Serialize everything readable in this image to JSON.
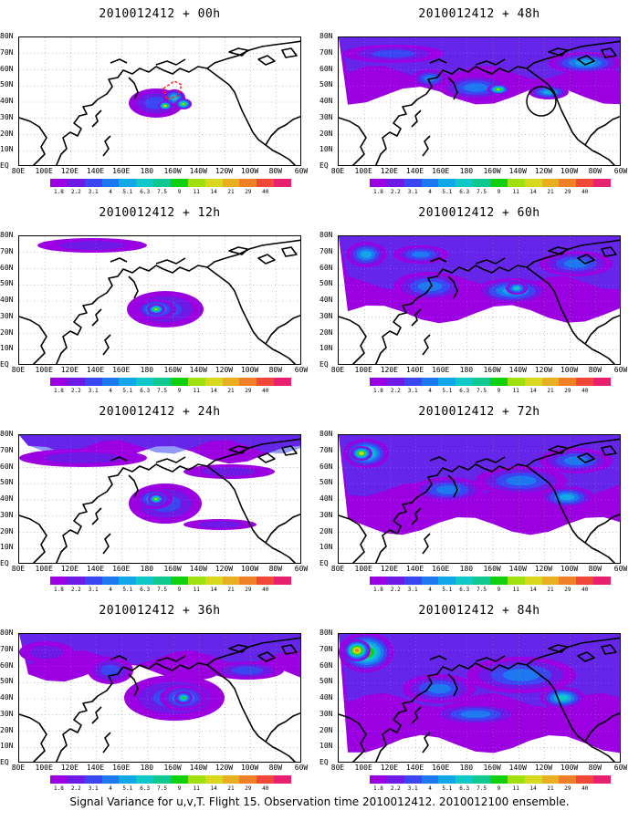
{
  "figure": {
    "caption": "Signal Variance for u,v,T. Flight 15. Observation time 2010012412. 2010012100 ensemble.",
    "panels": [
      {
        "title": "2010012412 + 00h",
        "blobs": [
          [
            150,
            72,
            30,
            16,
            3
          ],
          [
            170,
            66,
            12,
            9,
            6
          ],
          [
            180,
            73,
            9,
            6,
            8
          ],
          [
            160,
            75,
            8,
            5,
            9
          ]
        ],
        "band": 0,
        "target": "red-box"
      },
      {
        "title": "2010012412 + 48h",
        "blobs": [
          [
            60,
            18,
            55,
            10,
            3
          ],
          [
            150,
            55,
            40,
            14,
            4
          ],
          [
            175,
            57,
            12,
            6,
            8
          ],
          [
            230,
            60,
            22,
            8,
            5
          ],
          [
            270,
            28,
            40,
            12,
            5
          ],
          [
            100,
            45,
            20,
            10,
            4
          ]
        ],
        "band": 0.45,
        "target": "black-circle"
      },
      {
        "title": "2010012412 + 12h",
        "blobs": [
          [
            160,
            80,
            42,
            20,
            3
          ],
          [
            150,
            80,
            22,
            11,
            6
          ],
          [
            150,
            80,
            10,
            6,
            8
          ],
          [
            80,
            10,
            60,
            8,
            2
          ]
        ],
        "band": 0,
        "target": ""
      },
      {
        "title": "2010012412 + 60h",
        "blobs": [
          [
            30,
            20,
            22,
            14,
            5
          ],
          [
            100,
            55,
            40,
            16,
            4
          ],
          [
            190,
            60,
            40,
            14,
            5
          ],
          [
            195,
            57,
            12,
            7,
            6
          ],
          [
            260,
            30,
            40,
            14,
            4
          ],
          [
            90,
            20,
            30,
            10,
            4
          ]
        ],
        "band": 0.6,
        "target": ""
      },
      {
        "title": "2010012412 + 24h",
        "blobs": [
          [
            160,
            75,
            40,
            22,
            3
          ],
          [
            148,
            70,
            20,
            11,
            5
          ],
          [
            150,
            70,
            9,
            6,
            8
          ],
          [
            230,
            40,
            50,
            8,
            2
          ],
          [
            70,
            25,
            70,
            10,
            2
          ],
          [
            220,
            98,
            40,
            6,
            2
          ]
        ],
        "band": 0.15,
        "target": ""
      },
      {
        "title": "2010012412 + 72h",
        "blobs": [
          [
            30,
            20,
            25,
            16,
            7
          ],
          [
            25,
            20,
            12,
            8,
            9
          ],
          [
            120,
            60,
            40,
            14,
            4
          ],
          [
            200,
            50,
            50,
            16,
            4
          ],
          [
            250,
            68,
            30,
            12,
            5
          ],
          [
            260,
            28,
            40,
            14,
            4
          ]
        ],
        "band": 0.7,
        "target": ""
      },
      {
        "title": "2010012412 + 36h",
        "blobs": [
          [
            100,
            40,
            25,
            15,
            3
          ],
          [
            170,
            70,
            55,
            25,
            3
          ],
          [
            180,
            70,
            26,
            14,
            5
          ],
          [
            180,
            70,
            10,
            7,
            7
          ],
          [
            30,
            20,
            30,
            12,
            2
          ],
          [
            250,
            40,
            40,
            10,
            3
          ]
        ],
        "band": 0.3,
        "target": ""
      },
      {
        "title": "2010012412 + 84h",
        "blobs": [
          [
            30,
            20,
            30,
            22,
            8
          ],
          [
            20,
            18,
            15,
            12,
            10
          ],
          [
            110,
            60,
            40,
            16,
            4
          ],
          [
            200,
            45,
            60,
            20,
            4
          ],
          [
            245,
            70,
            25,
            12,
            6
          ],
          [
            150,
            88,
            50,
            12,
            4
          ]
        ],
        "band": 0.85,
        "target": ""
      }
    ],
    "lat_labels": [
      "80N",
      "70N",
      "60N",
      "50N",
      "40N",
      "30N",
      "20N",
      "10N",
      "EQ"
    ],
    "lon_labels": [
      "80E",
      "100E",
      "120E",
      "140E",
      "160E",
      "180",
      "160W",
      "140W",
      "120W",
      "100W",
      "80W",
      "60W"
    ],
    "colorbar_labels": [
      "1.8",
      "2.2",
      "3.1",
      "4",
      "5.1",
      "6.3",
      "7.5",
      "9",
      "11",
      "14",
      "21",
      "29",
      "40"
    ],
    "colorbar_colors": [
      "#9b00e0",
      "#6e1ae6",
      "#3a46f0",
      "#1e78f0",
      "#12a8e8",
      "#10c8c8",
      "#10c890",
      "#10d010",
      "#a0e010",
      "#d8d820",
      "#e8b020",
      "#f08028",
      "#f04838",
      "#e82070"
    ],
    "contour_colors": [
      "#ffffff",
      "#9b00e0",
      "#6e1ae6",
      "#3a46f0",
      "#1e78f0",
      "#12a8e8",
      "#10c8c8",
      "#10d010",
      "#a0e010",
      "#d8d820",
      "#f08028"
    ]
  }
}
